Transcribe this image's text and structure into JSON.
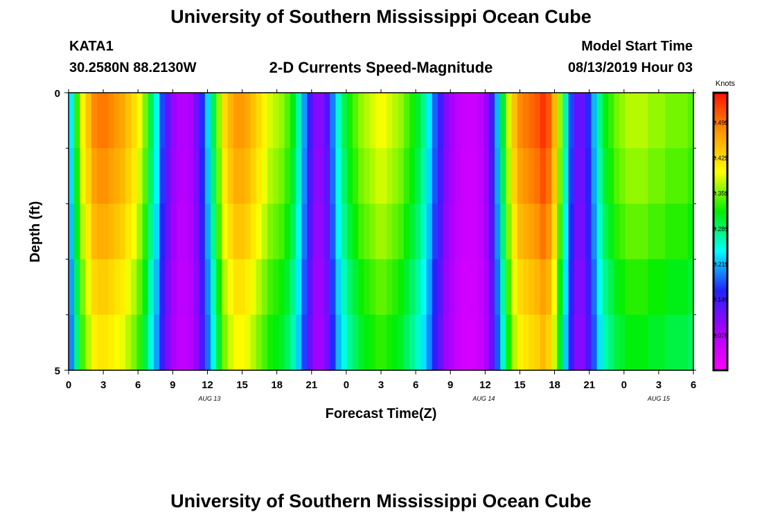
{
  "header": {
    "title": "University of Southern Mississippi Ocean Cube",
    "station": "KATA1",
    "coords": "30.2580N 88.2130W",
    "plot_title": "2-D Currents Speed-Magnitude",
    "model_start_label": "Model Start Time",
    "model_start_value": "08/13/2019 Hour 03"
  },
  "footer": {
    "title": "University of Southern Mississippi Ocean Cube"
  },
  "chart_data": {
    "type": "heatmap",
    "title": "2-D Currents Speed-Magnitude",
    "xlabel": "Forecast Time(Z)",
    "ylabel": "Depth (ft)",
    "y_ticks": [
      "0",
      "5"
    ],
    "ylim": [
      0,
      5
    ],
    "x_tick_labels": [
      "0",
      "3",
      "6",
      "9",
      "12",
      "15",
      "18",
      "21",
      "0",
      "3",
      "6",
      "9",
      "12",
      "15",
      "18",
      "21",
      "0",
      "3",
      "6"
    ],
    "date_labels": [
      "AUG 13",
      "AUG 14",
      "AUG 15"
    ],
    "colorbar": {
      "unit": "Knots",
      "ticks": [
        0.07,
        0.141,
        0.211,
        0.281,
        0.352,
        0.422,
        0.492
      ],
      "tick_labels": [
        "0.070",
        "0.141",
        "0.211",
        "0.281",
        "0.352",
        "0.422",
        "0.492"
      ],
      "range": [
        0.0,
        0.55
      ],
      "colors": [
        "#ff00ff",
        "#aa00ff",
        "#2222ff",
        "#00ffff",
        "#00ee00",
        "#ffff00",
        "#ff9900",
        "#ff1100"
      ]
    },
    "depth_layers": [
      0,
      1,
      2,
      3,
      4
    ],
    "time_columns": [
      0.23,
      0.33,
      0.4,
      0.44,
      0.48,
      0.49,
      0.49,
      0.48,
      0.47,
      0.46,
      0.44,
      0.42,
      0.39,
      0.35,
      0.29,
      0.24,
      0.17,
      0.12,
      0.09,
      0.07,
      0.07,
      0.08,
      0.11,
      0.16,
      0.22,
      0.29,
      0.36,
      0.42,
      0.45,
      0.47,
      0.47,
      0.46,
      0.44,
      0.42,
      0.4,
      0.38,
      0.37,
      0.36,
      0.34,
      0.31,
      0.26,
      0.2,
      0.14,
      0.1,
      0.1,
      0.13,
      0.19,
      0.25,
      0.29,
      0.32,
      0.34,
      0.36,
      0.37,
      0.38,
      0.39,
      0.39,
      0.38,
      0.37,
      0.36,
      0.34,
      0.32,
      0.3,
      0.27,
      0.23,
      0.18,
      0.14,
      0.1,
      0.08,
      0.06,
      0.05,
      0.05,
      0.05,
      0.06,
      0.09,
      0.14,
      0.21,
      0.3,
      0.38,
      0.44,
      0.48,
      0.49,
      0.5,
      0.51,
      0.53,
      0.51,
      0.45,
      0.36,
      0.26,
      0.17,
      0.12,
      0.12,
      0.16,
      0.21,
      0.27,
      0.31,
      0.33,
      0.35,
      0.36,
      0.37,
      0.37,
      0.37,
      0.37,
      0.36,
      0.36,
      0.36,
      0.35,
      0.35,
      0.35,
      0.35,
      0.34
    ],
    "depth_factors": [
      1.0,
      0.97,
      0.93,
      0.88,
      0.84
    ]
  }
}
